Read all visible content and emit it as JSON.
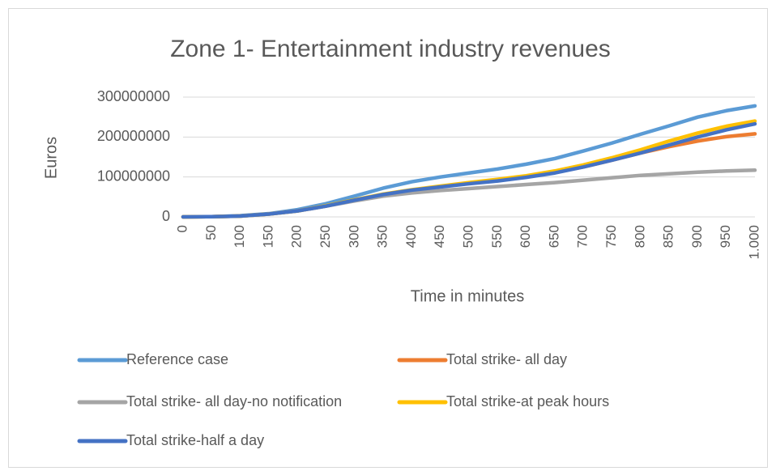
{
  "chart_data": {
    "type": "line",
    "title": "Zone 1- Entertainment industry revenues",
    "x_label": "Time in minutes",
    "y_label": "Euros",
    "x": [
      0,
      50,
      100,
      150,
      200,
      250,
      300,
      350,
      400,
      450,
      500,
      550,
      600,
      650,
      700,
      750,
      800,
      850,
      900,
      950,
      1000
    ],
    "series": [
      {
        "name": "Reference case",
        "color": "#5b9bd5",
        "values": [
          0,
          500000,
          3000000,
          8000000,
          18000000,
          33000000,
          52000000,
          72000000,
          88000000,
          100000000,
          110000000,
          120000000,
          132000000,
          146000000,
          165000000,
          185000000,
          207000000,
          228000000,
          250000000,
          266000000,
          278000000
        ]
      },
      {
        "name": "Total strike- all day",
        "color": "#ed7d31",
        "values": [
          0,
          500000,
          2000000,
          7000000,
          15000000,
          27000000,
          42000000,
          56000000,
          67000000,
          76000000,
          84000000,
          92000000,
          101000000,
          112000000,
          125000000,
          142000000,
          160000000,
          176000000,
          190000000,
          201000000,
          208000000
        ]
      },
      {
        "name": "Total strike- all day-no notification",
        "color": "#a5a5a5",
        "values": [
          0,
          500000,
          2000000,
          7000000,
          15000000,
          27000000,
          40000000,
          52000000,
          60000000,
          66000000,
          71000000,
          76000000,
          81000000,
          86000000,
          92000000,
          98000000,
          104000000,
          108000000,
          112000000,
          115000000,
          117000000
        ]
      },
      {
        "name": "Total strike-at peak hours",
        "color": "#ffc000",
        "values": [
          0,
          500000,
          2000000,
          7000000,
          15000000,
          28000000,
          43000000,
          57000000,
          68000000,
          77000000,
          86000000,
          94000000,
          103000000,
          115000000,
          130000000,
          148000000,
          168000000,
          190000000,
          210000000,
          227000000,
          240000000
        ]
      },
      {
        "name": "Total strike-half a day",
        "color": "#4472c4",
        "values": [
          0,
          500000,
          2000000,
          7000000,
          15000000,
          27000000,
          42000000,
          56000000,
          67000000,
          75000000,
          83000000,
          90000000,
          99000000,
          110000000,
          125000000,
          142000000,
          160000000,
          180000000,
          200000000,
          218000000,
          233000000
        ]
      }
    ],
    "xlim": [
      0,
      1000
    ],
    "xticks": [
      0,
      50,
      100,
      150,
      200,
      250,
      300,
      350,
      400,
      450,
      500,
      550,
      600,
      650,
      700,
      750,
      800,
      850,
      900,
      950,
      {
        "value": 1000,
        "label": "1.000"
      }
    ],
    "ylim": [
      0,
      300000000
    ],
    "yticks": [
      0,
      100000000,
      200000000,
      300000000
    ],
    "grid": true,
    "legend": "bottom"
  }
}
